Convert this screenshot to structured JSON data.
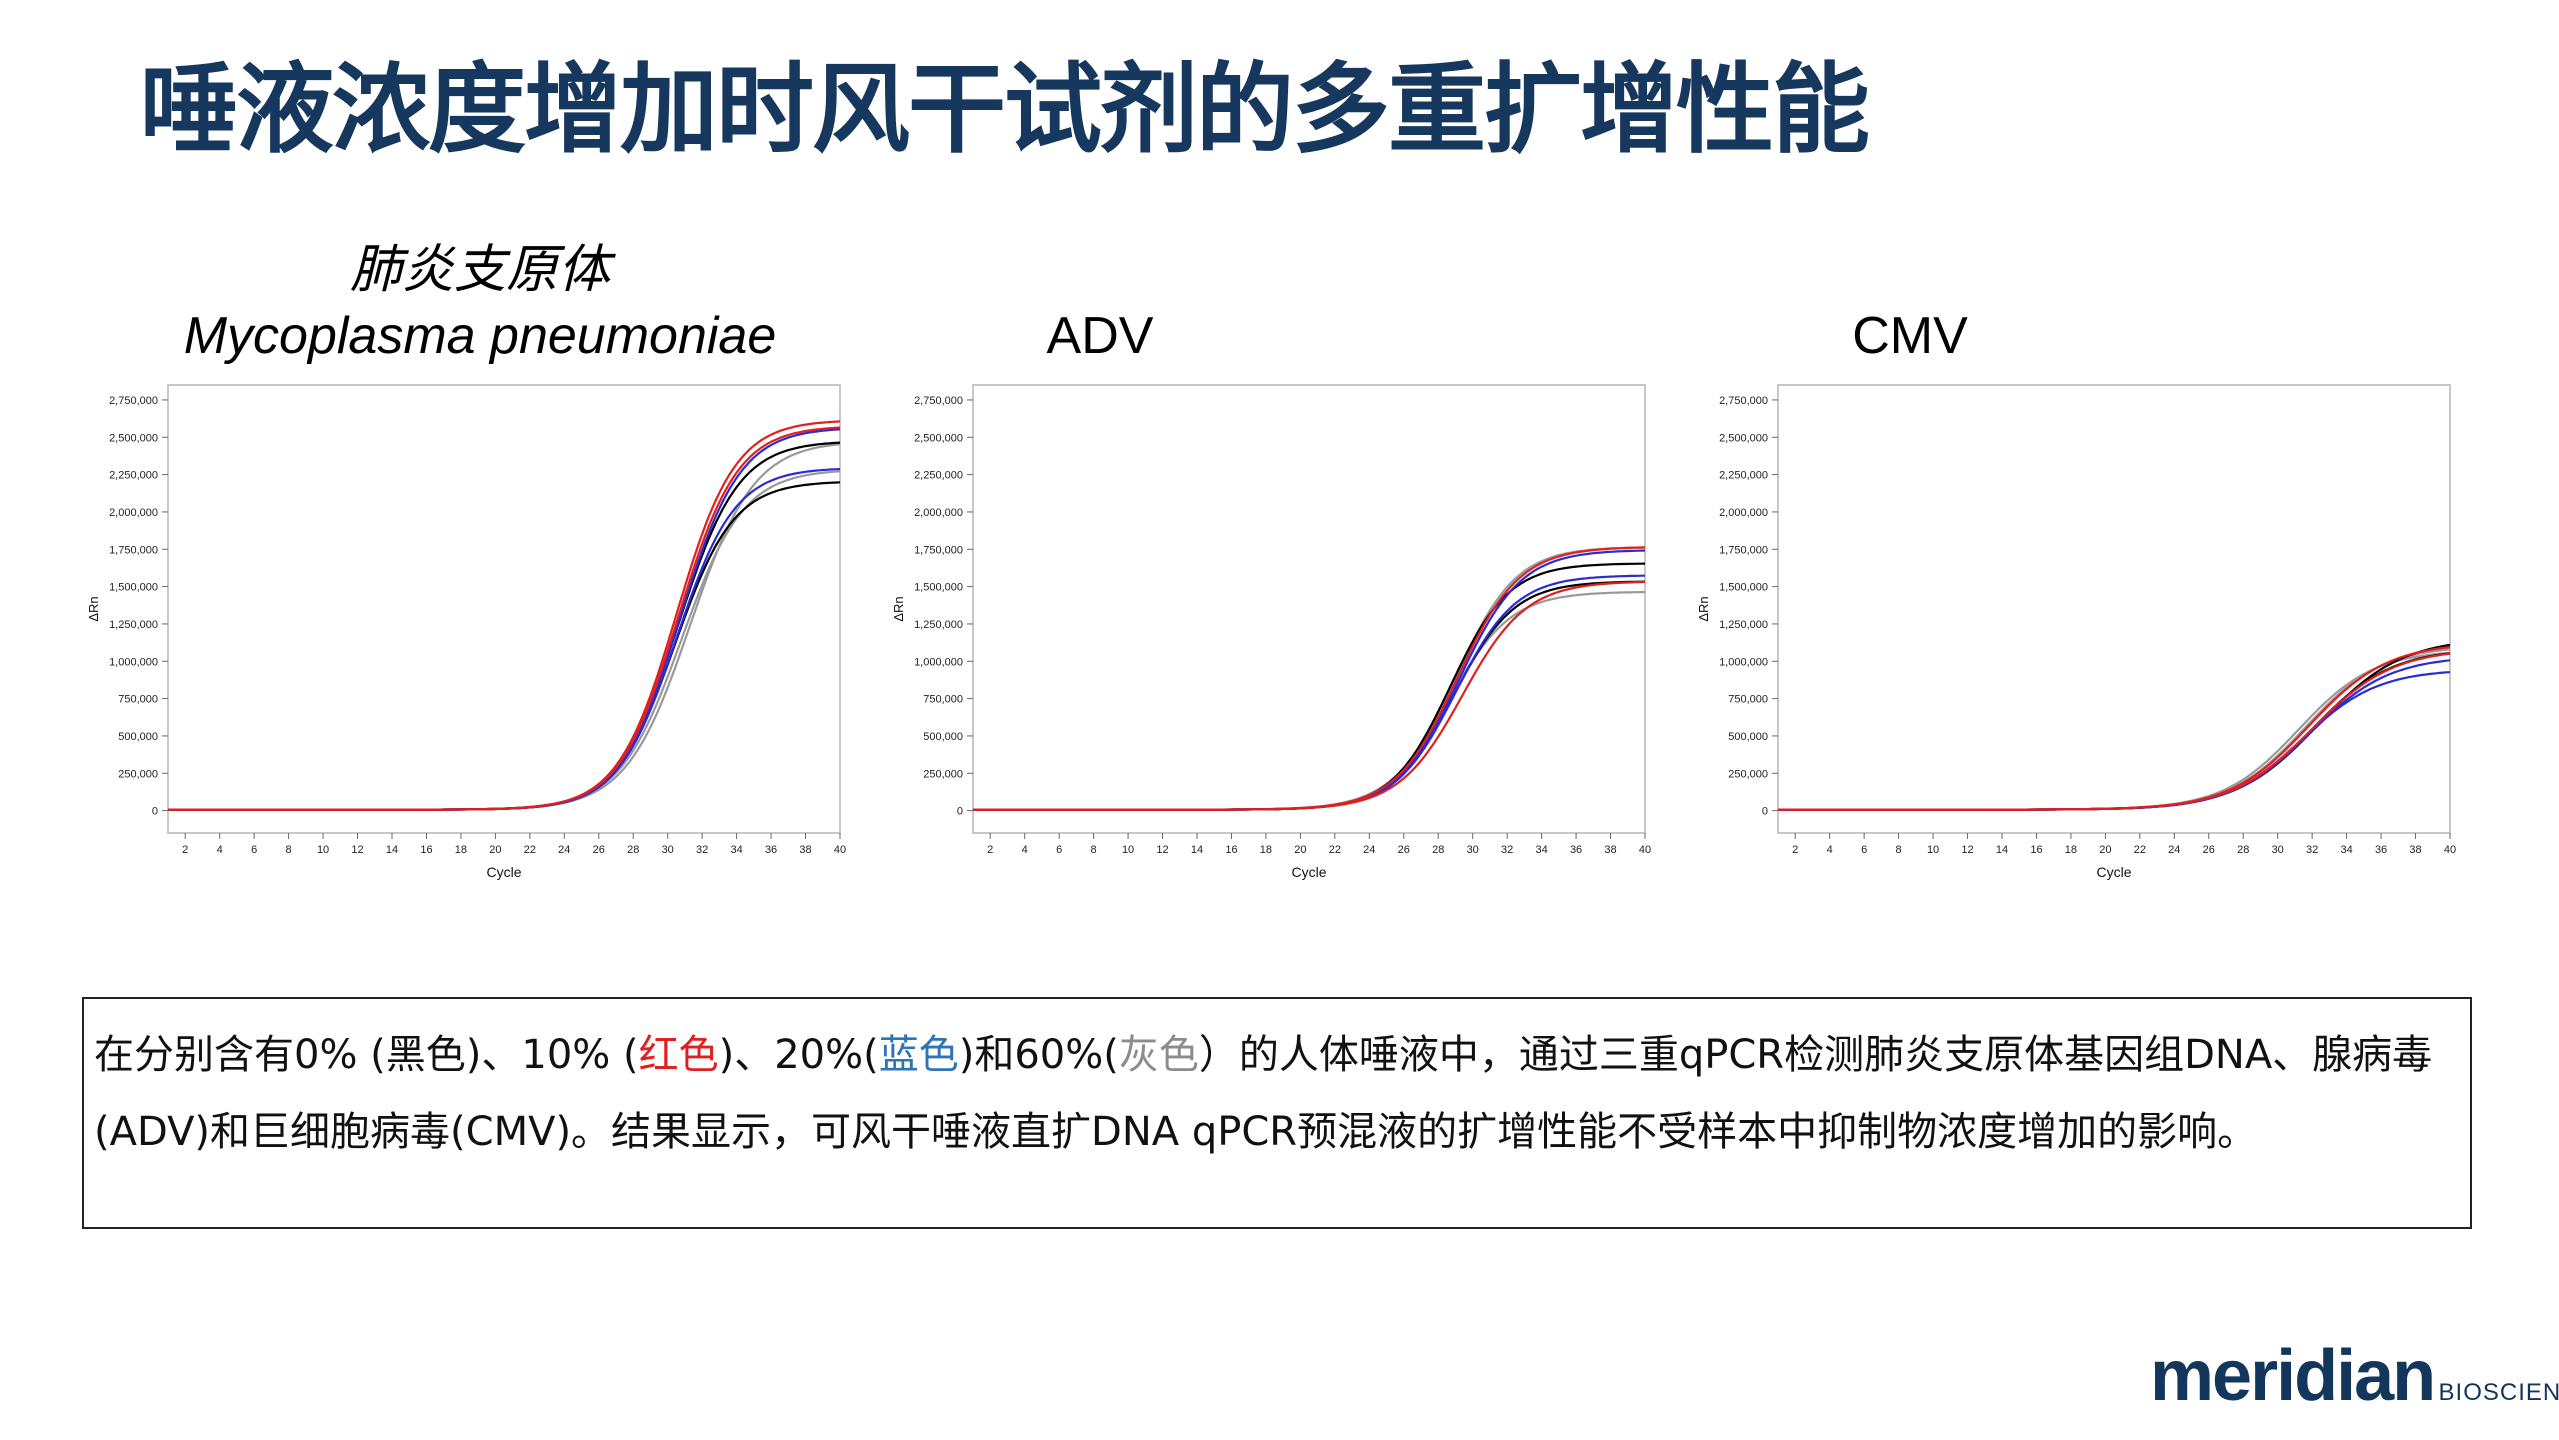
{
  "title": "唾液浓度增加时风干试剂的多重扩增性能",
  "colors": {
    "title": "#16375e",
    "black": "#000000",
    "red": "#e0201f",
    "blue": "#2b2bd6",
    "grey": "#999999"
  },
  "charts_header": [
    {
      "cn": "肺炎支原体",
      "en": "Mycoplasma pneumoniae"
    },
    {
      "cn": "",
      "en": "ADV"
    },
    {
      "cn": "",
      "en": "CMV"
    }
  ],
  "chart_data": [
    {
      "type": "line",
      "title": "Mycoplasma pneumoniae",
      "xlabel": "Cycle",
      "ylabel": "ΔRn",
      "xlim": [
        1,
        40
      ],
      "ylim": [
        -150000,
        2850000
      ],
      "xticks": [
        2,
        4,
        6,
        8,
        10,
        12,
        14,
        16,
        18,
        20,
        22,
        24,
        26,
        28,
        30,
        32,
        34,
        36,
        38,
        40
      ],
      "yticks": [
        0,
        250000,
        500000,
        750000,
        1000000,
        1250000,
        1500000,
        1750000,
        2000000,
        2250000,
        2500000,
        2750000
      ],
      "ytick_labels": [
        "0",
        "250,000",
        "500,000",
        "750,000",
        "1,000,000",
        "1,250,000",
        "1,500,000",
        "1,750,000",
        "2,000,000",
        "2,250,000",
        "2,500,000",
        "2,750,000"
      ],
      "curves": [
        {
          "color": "black",
          "plateau": 2200000,
          "midpoint": 30.4,
          "slope": 1.7
        },
        {
          "color": "black",
          "plateau": 2470000,
          "midpoint": 30.6,
          "slope": 1.75
        },
        {
          "color": "red",
          "plateau": 2610000,
          "midpoint": 30.5,
          "slope": 1.7
        },
        {
          "color": "red",
          "plateau": 2570000,
          "midpoint": 30.6,
          "slope": 1.72
        },
        {
          "color": "blue",
          "plateau": 2290000,
          "midpoint": 30.5,
          "slope": 1.7
        },
        {
          "color": "blue",
          "plateau": 2560000,
          "midpoint": 30.7,
          "slope": 1.75
        },
        {
          "color": "grey",
          "plateau": 2470000,
          "midpoint": 31.3,
          "slope": 1.85
        },
        {
          "color": "grey",
          "plateau": 2280000,
          "midpoint": 30.8,
          "slope": 1.8
        }
      ]
    },
    {
      "type": "line",
      "title": "ADV",
      "xlabel": "Cycle",
      "ylabel": "ΔRn",
      "xlim": [
        1,
        40
      ],
      "ylim": [
        -150000,
        2850000
      ],
      "xticks": [
        2,
        4,
        6,
        8,
        10,
        12,
        14,
        16,
        18,
        20,
        22,
        24,
        26,
        28,
        30,
        32,
        34,
        36,
        38,
        40
      ],
      "yticks": [
        0,
        250000,
        500000,
        750000,
        1000000,
        1250000,
        1500000,
        1750000,
        2000000,
        2250000,
        2500000,
        2750000
      ],
      "ytick_labels": [
        "0",
        "250,000",
        "500,000",
        "750,000",
        "1,000,000",
        "1,250,000",
        "1,500,000",
        "1,750,000",
        "2,000,000",
        "2,250,000",
        "2,500,000",
        "2,750,000"
      ],
      "curves": [
        {
          "color": "black",
          "plateau": 1650000,
          "midpoint": 28.7,
          "slope": 1.7
        },
        {
          "color": "black",
          "plateau": 1530000,
          "midpoint": 28.9,
          "slope": 1.75
        },
        {
          "color": "red",
          "plateau": 1760000,
          "midpoint": 29.1,
          "slope": 1.8
        },
        {
          "color": "red",
          "plateau": 1530000,
          "midpoint": 29.4,
          "slope": 1.85
        },
        {
          "color": "blue",
          "plateau": 1570000,
          "midpoint": 29.0,
          "slope": 1.75
        },
        {
          "color": "blue",
          "plateau": 1740000,
          "midpoint": 29.2,
          "slope": 1.8
        },
        {
          "color": "grey",
          "plateau": 1460000,
          "midpoint": 28.6,
          "slope": 1.8
        },
        {
          "color": "grey",
          "plateau": 1760000,
          "midpoint": 29.0,
          "slope": 1.75
        }
      ]
    },
    {
      "type": "line",
      "title": "CMV",
      "xlabel": "Cycle",
      "ylabel": "ΔRn",
      "xlim": [
        1,
        40
      ],
      "ylim": [
        -150000,
        2850000
      ],
      "xticks": [
        2,
        4,
        6,
        8,
        10,
        12,
        14,
        16,
        18,
        20,
        22,
        24,
        26,
        28,
        30,
        32,
        34,
        36,
        38,
        40
      ],
      "yticks": [
        0,
        250000,
        500000,
        750000,
        1000000,
        1250000,
        1500000,
        1750000,
        2000000,
        2250000,
        2500000,
        2750000
      ],
      "ytick_labels": [
        "0",
        "250,000",
        "500,000",
        "750,000",
        "1,000,000",
        "1,250,000",
        "1,500,000",
        "1,750,000",
        "2,000,000",
        "2,250,000",
        "2,500,000",
        "2,750,000"
      ],
      "curves": [
        {
          "color": "black",
          "plateau": 1150000,
          "midpoint": 32.4,
          "slope": 2.4
        },
        {
          "color": "black",
          "plateau": 1080000,
          "midpoint": 32.0,
          "slope": 2.3
        },
        {
          "color": "red",
          "plateau": 1120000,
          "midpoint": 31.8,
          "slope": 2.3
        },
        {
          "color": "red",
          "plateau": 1080000,
          "midpoint": 32.0,
          "slope": 2.35
        },
        {
          "color": "blue",
          "plateau": 940000,
          "midpoint": 31.4,
          "slope": 2.2
        },
        {
          "color": "blue",
          "plateau": 1030000,
          "midpoint": 31.9,
          "slope": 2.3
        },
        {
          "color": "grey",
          "plateau": 1070000,
          "midpoint": 31.2,
          "slope": 2.2
        },
        {
          "color": "grey",
          "plateau": 1100000,
          "midpoint": 31.6,
          "slope": 2.25
        }
      ]
    }
  ],
  "caption": {
    "p1": "在分别含有0% (黑色)、10% (",
    "red": "红色",
    "p2": ")、20%(",
    "blue": "蓝色",
    "p3": ")和60%(",
    "grey": "灰色",
    "p4": "）的人体唾液中，通过三重qPCR检测肺炎支原体基因组DNA、腺病毒(ADV)和巨细胞病毒(CMV)。结果显示，可风干唾液直扩DNA qPCR预混液的扩增性能不受样本中抑制物浓度增加的影响。"
  },
  "logo": {
    "word": "meridian",
    "suffix": "BIOSCIENCE™"
  }
}
